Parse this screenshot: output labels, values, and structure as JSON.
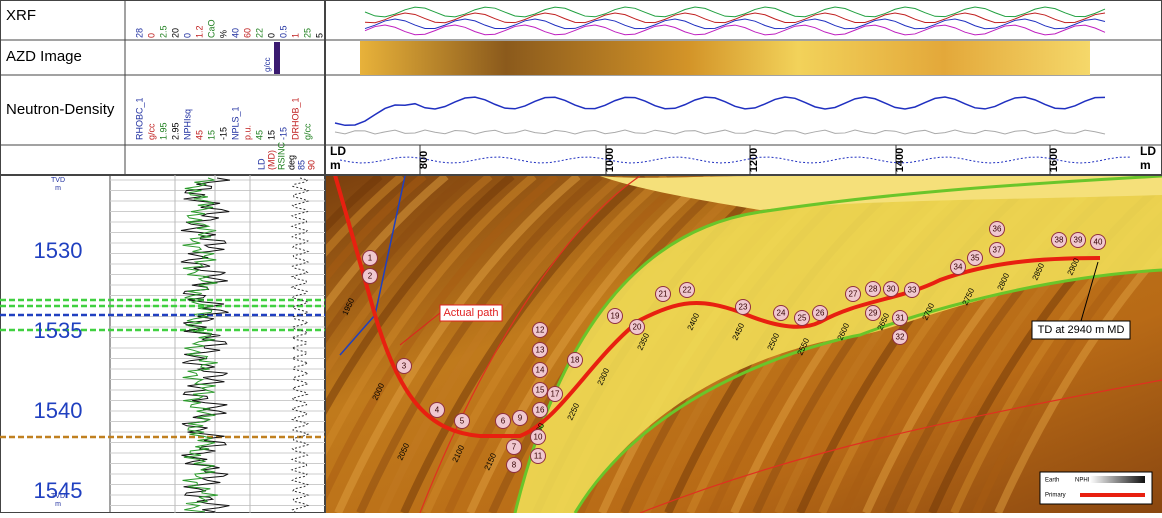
{
  "tracks": {
    "labels": [
      "XRF",
      "AZD Image",
      "Neutron-Density"
    ]
  },
  "header_curves": {
    "xrf": [
      "28",
      "0",
      "2.5",
      "20",
      "0",
      "1.2",
      "CaO",
      "%",
      "40",
      "60",
      "22",
      "0",
      "0.5",
      "1",
      "25",
      "5"
    ],
    "azd": [
      "g/cc"
    ],
    "neutron": [
      "RHOBC_1",
      "g/cc",
      "1.95",
      "2.95",
      "NPHIsq",
      "45",
      "15",
      "-15",
      "NPLS_1",
      "p.u.",
      "45",
      "15",
      "-15",
      "DRHOB_1",
      "g/cc"
    ],
    "depth": [
      "LD",
      "(MD)",
      "RSINC",
      "deg",
      "85",
      "90"
    ]
  },
  "md_axis": {
    "unit_top": "LD",
    "unit_bottom": "m",
    "right_top": "LD",
    "right_bottom": "m",
    "ticks": [
      "800",
      "1000",
      "1200",
      "1400",
      "1600"
    ]
  },
  "tvd_axis": {
    "title": "TVD",
    "unit": "m",
    "ticks": [
      "1530",
      "1535",
      "1540",
      "1545"
    ],
    "bottom_title": "TVD",
    "bottom_unit": "m"
  },
  "annotations": {
    "actual_path": "Actual path",
    "td": "TD at 2940 m MD"
  },
  "md_labels": [
    "1950",
    "2000",
    "2050",
    "2100",
    "2150",
    "2200",
    "2250",
    "2300",
    "2350",
    "2400",
    "2450",
    "2500",
    "2550",
    "2600",
    "2650",
    "2700",
    "2750",
    "2800",
    "2850",
    "2900"
  ],
  "markers": [
    "1",
    "2",
    "3",
    "4",
    "5",
    "6",
    "7",
    "8",
    "9",
    "10",
    "11",
    "12",
    "13",
    "14",
    "15",
    "16",
    "17",
    "18",
    "19",
    "20",
    "21",
    "22",
    "23",
    "24",
    "25",
    "26",
    "27",
    "28",
    "29",
    "30",
    "31",
    "32",
    "33",
    "34",
    "35",
    "36",
    "37",
    "38",
    "39",
    "40"
  ],
  "legend": {
    "earth": "Earth",
    "nphi": "NPHI",
    "primary": "Primary"
  }
}
